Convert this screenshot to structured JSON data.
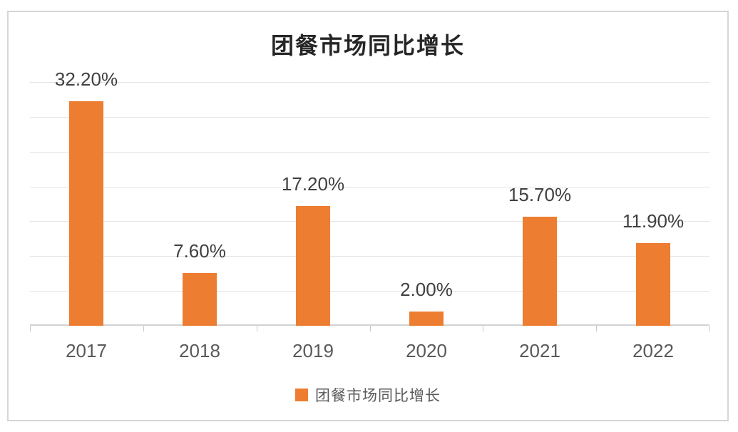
{
  "chart_data": {
    "type": "bar",
    "title": "团餐市场同比增长",
    "categories": [
      "2017",
      "2018",
      "2019",
      "2020",
      "2021",
      "2022"
    ],
    "series": [
      {
        "name": "团餐市场同比增长",
        "values": [
          32.2,
          7.6,
          17.2,
          2.0,
          15.7,
          11.9
        ]
      }
    ],
    "value_labels": [
      "32.20%",
      "7.60%",
      "17.20%",
      "2.00%",
      "15.70%",
      "11.90%"
    ],
    "xlabel": "",
    "ylabel": "",
    "ylim": [
      0,
      35
    ],
    "gridline_step": 5,
    "grid": true,
    "y_axis_tick_labels_visible": false,
    "data_labels_position": "outside-end",
    "legend_position": "bottom"
  },
  "legend": {
    "label": "团餐市场同比增长"
  },
  "colors": {
    "bar": "#ED7D31",
    "gridline": "#E3E3E3",
    "axis_line": "#D2D2D2",
    "tick": "#C9C9C9",
    "title_text": "#262626",
    "data_label_text": "#404040",
    "axis_label_text": "#595959",
    "frame_border": "#D6D6D6"
  }
}
